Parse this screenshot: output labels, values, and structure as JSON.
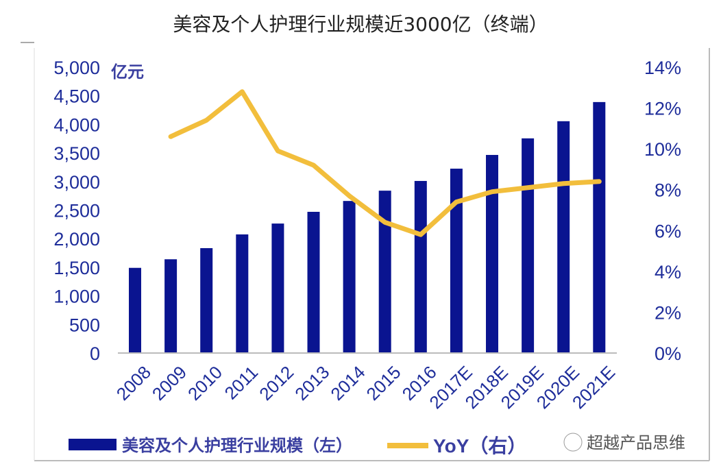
{
  "chart_data": {
    "type": "bar+line",
    "title": "美容及个人护理行业规模近3000亿（终端）",
    "categories": [
      "2008",
      "2009",
      "2010",
      "2011",
      "2012",
      "2013",
      "2014",
      "2015",
      "2016",
      "2017E",
      "2018E",
      "2019E",
      "2020E",
      "2021E"
    ],
    "series": [
      {
        "name": "美容及个人护理行业规模（左）",
        "type": "bar",
        "axis": "left",
        "color": "#0a1490",
        "values": [
          1490,
          1640,
          1835,
          2075,
          2265,
          2470,
          2660,
          2840,
          3010,
          3225,
          3465,
          3755,
          4055,
          4390
        ]
      },
      {
        "name": "YoY（右）",
        "type": "line",
        "axis": "right",
        "color": "#f2be3c",
        "values": [
          null,
          10.6,
          11.4,
          12.8,
          9.9,
          9.2,
          7.7,
          6.4,
          5.8,
          7.4,
          7.9,
          8.1,
          8.3,
          8.4
        ]
      }
    ],
    "y_left": {
      "label": "亿元",
      "range": [
        0,
        5000
      ],
      "ticks": [
        "0",
        "500",
        "1,000",
        "1,500",
        "2,000",
        "2,500",
        "3,000",
        "3,500",
        "4,000",
        "4,500",
        "5,000"
      ]
    },
    "y_right": {
      "range": [
        0,
        14
      ],
      "ticks": [
        "0%",
        "2%",
        "4%",
        "6%",
        "8%",
        "10%",
        "12%",
        "14%"
      ]
    },
    "grid": false,
    "legend_position": "bottom"
  },
  "legend": {
    "bar_label": "美容及个人护理行业规模（左）",
    "line_label": "YoY（右）"
  },
  "watermark": "超越产品思维"
}
